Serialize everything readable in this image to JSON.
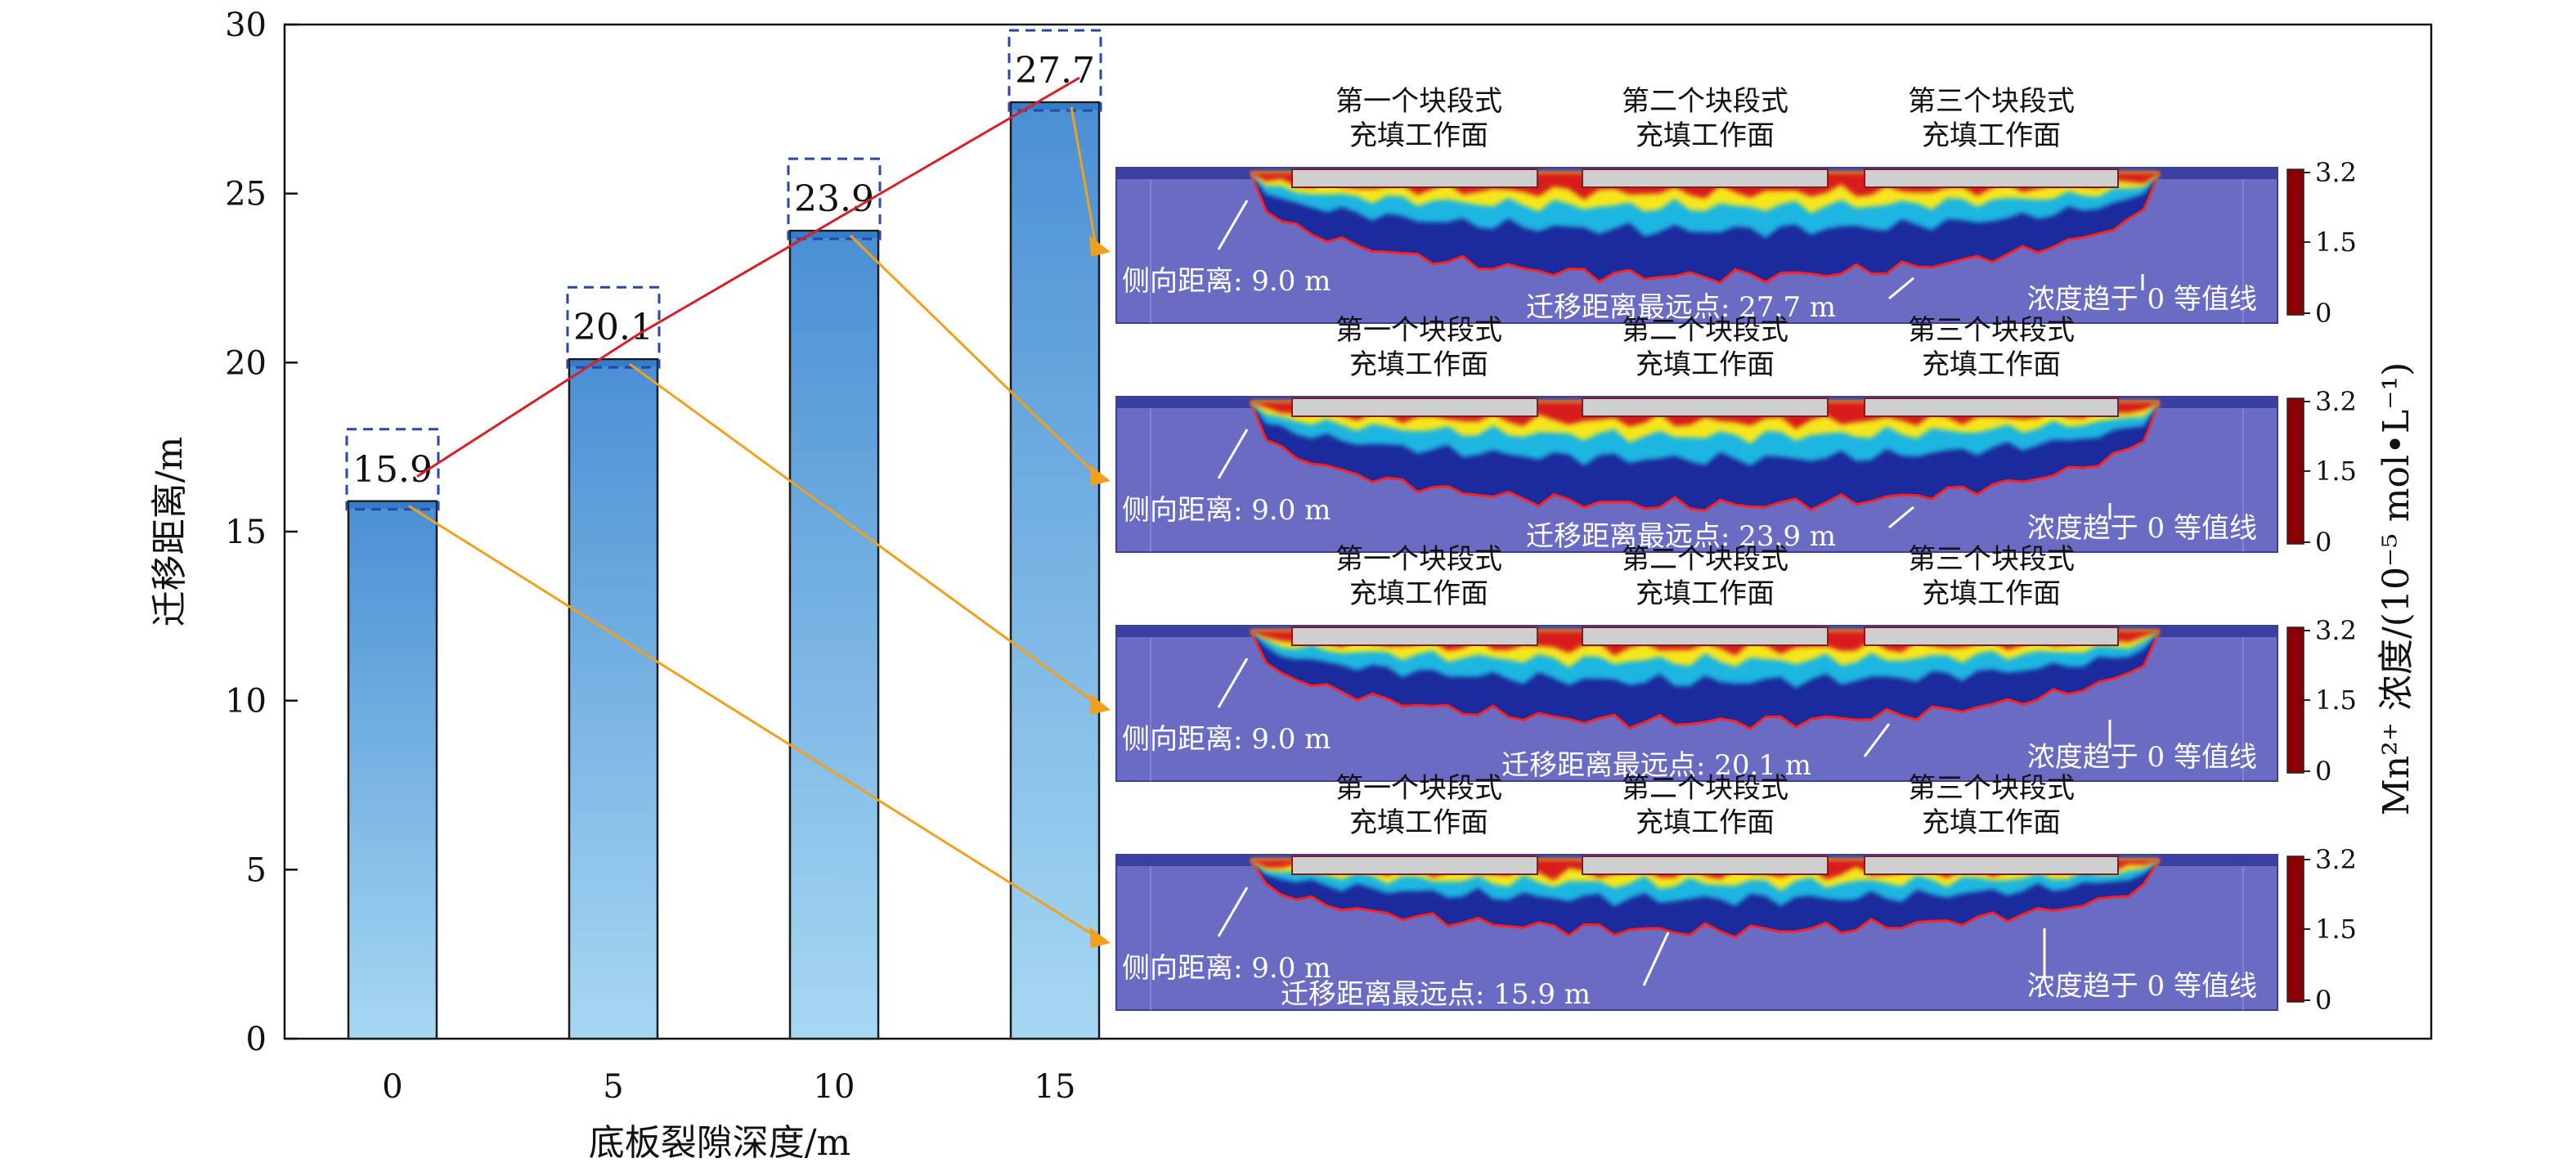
{
  "chart_data": {
    "type": "bar",
    "categories": [
      "0",
      "5",
      "10",
      "15"
    ],
    "values": [
      15.9,
      20.1,
      23.9,
      27.7
    ],
    "value_labels": [
      "15.9",
      "20.1",
      "23.9",
      "27.7"
    ],
    "xlabel": "底板裂隙深度/m",
    "ylabel": "迁移距离/m",
    "ylim": [
      0,
      30
    ],
    "yticks": [
      "0",
      "5",
      "10",
      "15",
      "20",
      "25",
      "30"
    ],
    "grid": false,
    "bar_gradient": [
      "#4a8fd4",
      "#a6d8f2"
    ],
    "trend_line_color": "#d4212a",
    "callout_color": "#f0a01e",
    "annotation": {
      "working_faces": [
        "第一个块段式\n充填工作面",
        "第二个块段式\n充填工作面",
        "第三个块段式\n充填工作面"
      ],
      "lateral": "侧向距离: 9.0 m",
      "contour": "浓度趋于 0 等值线",
      "farthest_prefix": "迁移距离最远点: ",
      "farthest_suffix": " m",
      "panels_order": [
        "27.7",
        "23.9",
        "20.1",
        "15.9"
      ]
    },
    "colorbar": {
      "ticks": [
        "3.2",
        "1.5",
        "0"
      ],
      "title": "Mn²⁺ 浓度/(10⁻⁵ mol•L⁻¹)",
      "colors": [
        "#8b0000",
        "#ff2200",
        "#ff9900",
        "#ffff33",
        "#33cc66",
        "#00bbee",
        "#2244cc",
        "#101a8a"
      ]
    },
    "model_colors": {
      "background": "#6a6cc4",
      "top_layer": "#3a3fa0",
      "plume_core": "#d81e1e",
      "plume_mid": "#f5e61c",
      "plume_outer": "#1fb6e0",
      "plume_edge": "#1b2a9c",
      "boundary": "#ff2020",
      "face_fill": "#cfcfcf"
    }
  }
}
